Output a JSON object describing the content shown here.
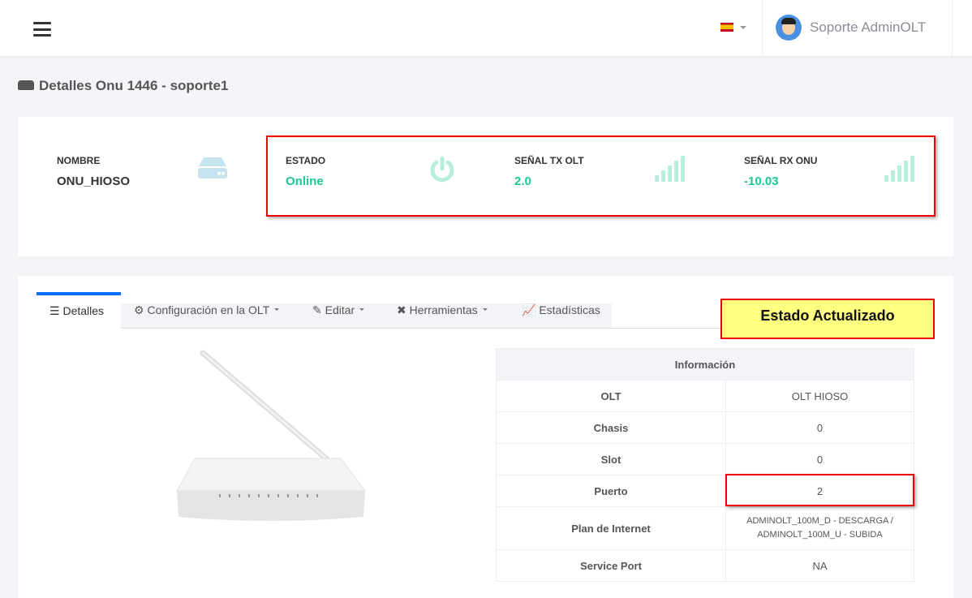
{
  "header": {
    "menu_icon": "hamburger-icon",
    "language": "es",
    "user_name": "Soporte AdminOLT"
  },
  "page": {
    "title": "Detalles Onu 1446 - soporte1",
    "title_icon": "hdd-icon"
  },
  "stats": [
    {
      "label": "NOMBRE",
      "value": "ONU_HIOSO",
      "icon": "hdd-icon"
    },
    {
      "label": "ESTADO",
      "value": "Online",
      "icon": "power-icon"
    },
    {
      "label": "SEÑAL TX OLT",
      "value": "2.0",
      "icon": "signal-icon"
    },
    {
      "label": "SEÑAL RX ONU",
      "value": "-10.03",
      "icon": "signal-icon"
    }
  ],
  "colors": {
    "accent": "#0d6efd",
    "success": "#1dc98f",
    "highlight": "#ff0000",
    "banner": "#ffff80"
  },
  "tabs": [
    {
      "label": "Detalles",
      "icon": "list-icon",
      "active": true
    },
    {
      "label": "Configuración en la OLT",
      "icon": "gear-icon",
      "dropdown": true
    },
    {
      "label": "Editar",
      "icon": "edit-icon",
      "dropdown": true
    },
    {
      "label": "Herramientas",
      "icon": "tools-icon",
      "dropdown": true
    },
    {
      "label": "Estadísticas",
      "icon": "chart-icon"
    }
  ],
  "banner": "Estado Actualizado",
  "info": {
    "header": "Información",
    "rows": [
      {
        "k": "OLT",
        "v": "OLT HIOSO"
      },
      {
        "k": "Chasis",
        "v": "0"
      },
      {
        "k": "Slot",
        "v": "0"
      },
      {
        "k": "Puerto",
        "v": "2"
      },
      {
        "k": "Plan de Internet",
        "v": "ADMINOLT_100M_D - DESCARGA / ADMINOLT_100M_U - SUBIDA"
      },
      {
        "k": "Service Port",
        "v": "NA"
      }
    ]
  }
}
